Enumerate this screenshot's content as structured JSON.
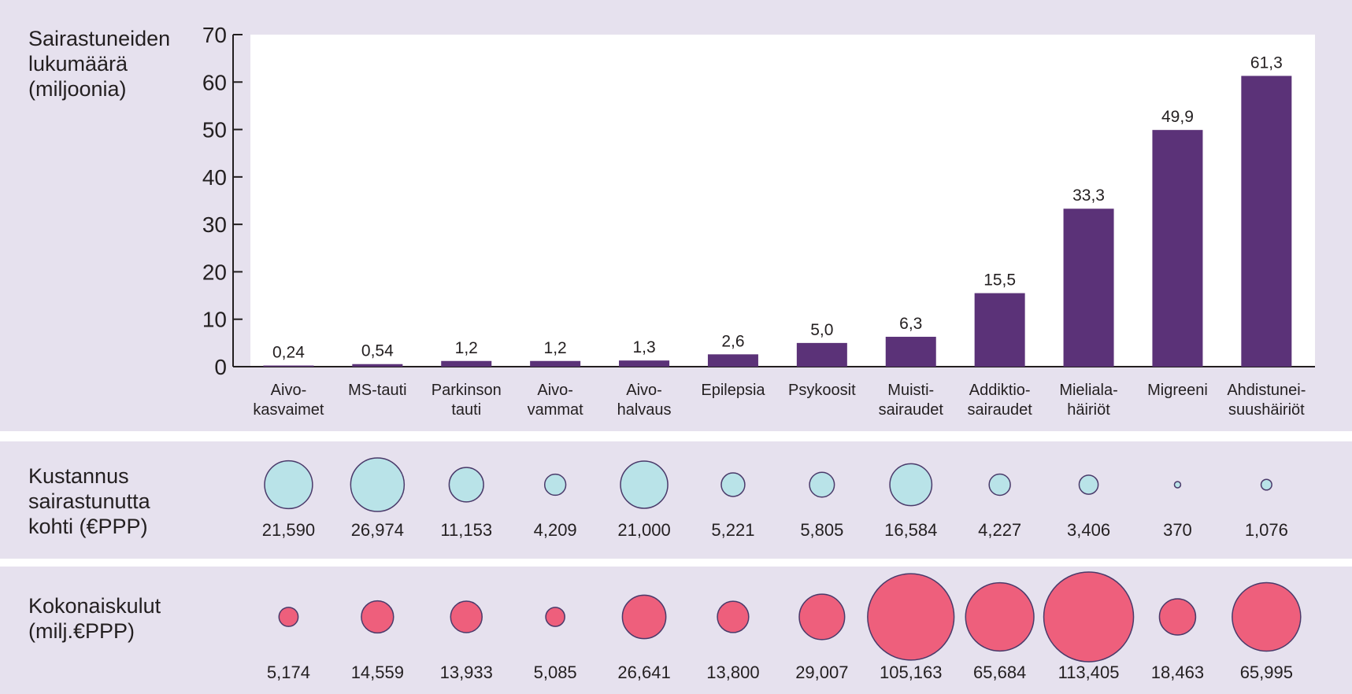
{
  "chart_data": [
    {
      "type": "bar",
      "title": "Sairastuneiden\nlukumäärä\n(miljoonia)",
      "categories": [
        "Aivo-\nkasvaimet",
        "MS-tauti",
        "Parkinson\ntauti",
        "Aivo-\nvammat",
        "Aivo-\nhalvaus",
        "Epilepsia",
        "Psykoosit",
        "Muisti-\nsairaudet",
        "Addiktio-\nsairaudet",
        "Mieliala-\nhäiriöt",
        "Migreeni",
        "Ahdistunei-\nsuushäiriöt"
      ],
      "values": [
        0.24,
        0.54,
        1.2,
        1.2,
        1.3,
        2.6,
        5.0,
        6.3,
        15.5,
        33.3,
        49.9,
        61.3
      ],
      "value_labels": [
        "0,24",
        "0,54",
        "1,2",
        "1,2",
        "1,3",
        "2,6",
        "5,0",
        "6,3",
        "15,5",
        "33,3",
        "49,9",
        "61,3"
      ],
      "color": "#5b3278",
      "ylim": [
        0,
        70
      ],
      "yticks": [
        0,
        10,
        20,
        30,
        40,
        50,
        60,
        70
      ]
    },
    {
      "type": "bubble",
      "title": "Kustannus\nsairastunutta\nkohti (€PPP)",
      "values": [
        21590,
        26974,
        11153,
        4209,
        21000,
        5221,
        5805,
        16584,
        4227,
        3406,
        370,
        1076
      ],
      "value_labels": [
        "21,590",
        "26,974",
        "11,153",
        "4,209",
        "21,000",
        "5,221",
        "5,805",
        "16,584",
        "4,227",
        "3,406",
        "370",
        "1,076"
      ],
      "color": "#b9e3e8"
    },
    {
      "type": "bubble",
      "title": "Kokonaiskulut\n(milj.€PPP)",
      "values": [
        5174,
        14559,
        13933,
        5085,
        26641,
        13800,
        29007,
        105163,
        65684,
        113405,
        18463,
        65995
      ],
      "value_labels": [
        "5,174",
        "14,559",
        "13,933",
        "5,085",
        "26,641",
        "13,800",
        "29,007",
        "105,163",
        "65,684",
        "113,405",
        "18,463",
        "65,995"
      ],
      "color": "#ee5f7c"
    }
  ]
}
